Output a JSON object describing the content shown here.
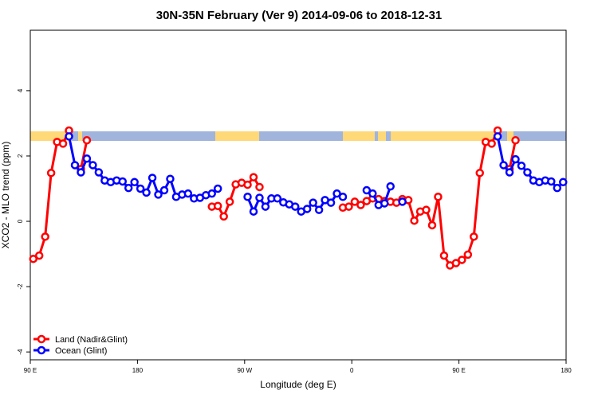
{
  "chart_data": {
    "type": "line",
    "title": "30N-35N February (Ver 9)   2014-09-06 to 2018-12-31",
    "x_label": "Longitude (deg E)",
    "y_label": "XCO2 - MLO trend (ppm)",
    "xlim": [
      90,
      540
    ],
    "ylim": [
      -4.24,
      5.85
    ],
    "xticks": [
      {
        "value": 90,
        "label": "90 E"
      },
      180,
      {
        "value": 270,
        "label": "90 W"
      },
      {
        "value": 360,
        "label": "0"
      },
      {
        "value": 450,
        "label": "90 E"
      },
      {
        "value": 540,
        "label": "180"
      }
    ],
    "yticks": [
      -4,
      -2,
      0,
      2,
      4
    ],
    "legend": "bottomleft",
    "x": [
      92.5,
      97.5,
      102.5,
      107.5,
      112.5,
      117.5,
      122.5,
      127.5,
      132.5,
      137.5,
      142.5,
      147.5,
      152.5,
      157.5,
      162.5,
      167.5,
      172.5,
      177.5,
      182.5,
      187.5,
      192.5,
      197.5,
      202.5,
      207.5,
      212.5,
      217.5,
      222.5,
      227.5,
      232.5,
      237.5,
      242.5,
      247.5,
      252.5,
      257.5,
      262.5,
      267.5,
      272.5,
      277.5,
      282.5,
      287.5,
      292.5,
      297.5,
      302.5,
      307.5,
      312.5,
      317.5,
      322.5,
      327.5,
      332.5,
      337.5,
      342.5,
      347.5,
      352.5,
      357.5,
      362.5,
      367.5,
      372.5,
      377.5,
      382.5,
      387.5,
      392.5,
      397.5,
      402.5,
      407.5,
      412.5,
      417.5,
      422.5,
      427.5,
      432.5,
      437.5,
      442.5,
      447.5,
      452.5,
      457.5,
      462.5,
      467.5,
      472.5,
      477.5,
      482.5,
      487.5,
      492.5,
      497.5,
      502.5,
      507.5,
      512.5,
      517.5,
      522.5,
      527.5,
      532.5,
      537.5
    ],
    "series": [
      {
        "name": "Land (Nadir&Glint)",
        "color": "#ff0000",
        "values": [
          -1.15,
          -1.05,
          -0.47,
          1.48,
          2.43,
          2.38,
          2.78,
          null,
          1.6,
          2.48,
          null,
          null,
          null,
          null,
          null,
          null,
          null,
          null,
          null,
          null,
          null,
          null,
          null,
          null,
          null,
          null,
          null,
          null,
          null,
          null,
          0.45,
          0.47,
          0.15,
          0.6,
          1.13,
          1.18,
          1.12,
          1.35,
          1.05,
          null,
          null,
          null,
          null,
          null,
          null,
          null,
          null,
          null,
          null,
          null,
          null,
          null,
          0.42,
          0.45,
          0.6,
          0.5,
          0.62,
          0.7,
          0.68,
          0.62,
          0.6,
          0.57,
          0.68,
          0.65,
          0.02,
          0.3,
          0.35,
          -0.12,
          0.75,
          -1.05,
          -1.35,
          -1.28,
          -1.18,
          -1.02,
          -0.47,
          1.48,
          2.43,
          2.38,
          2.78,
          null,
          1.6,
          2.48,
          null,
          null,
          null,
          null,
          null,
          null,
          null,
          null
        ]
      },
      {
        "name": "Ocean (Glint)",
        "color": "#0000ff",
        "values": [
          null,
          null,
          null,
          null,
          null,
          null,
          2.6,
          1.72,
          1.5,
          1.92,
          1.72,
          1.5,
          1.25,
          1.2,
          1.25,
          1.22,
          1.02,
          1.2,
          1.0,
          0.88,
          1.33,
          0.82,
          0.95,
          1.3,
          0.75,
          0.82,
          0.85,
          0.7,
          0.72,
          0.8,
          0.85,
          1.0,
          null,
          null,
          null,
          null,
          0.75,
          0.3,
          0.72,
          0.45,
          0.7,
          0.7,
          0.58,
          0.52,
          0.45,
          0.3,
          0.38,
          0.57,
          0.35,
          0.65,
          0.57,
          0.85,
          0.75,
          null,
          null,
          null,
          0.95,
          0.85,
          0.5,
          0.55,
          1.07,
          null,
          0.6,
          null,
          null,
          null,
          null,
          null,
          null,
          null,
          null,
          null,
          null,
          null,
          null,
          null,
          null,
          null,
          2.6,
          1.72,
          1.5,
          1.9,
          1.7,
          1.5,
          1.25,
          1.2,
          1.25,
          1.22,
          1.02,
          1.2
        ]
      }
    ]
  }
}
